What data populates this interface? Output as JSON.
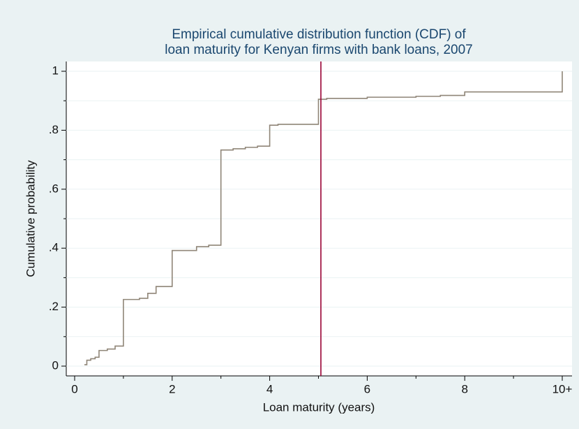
{
  "chart_data": {
    "type": "step",
    "title": [
      "Empirical cumulative distribution function (CDF) of",
      "loan maturity for Kenyan firms with bank loans, 2007"
    ],
    "x_label": "Loan maturity (years)",
    "y_label": "Cumulative probability",
    "x": [
      0.2,
      0.25,
      0.33,
      0.42,
      0.5,
      0.67,
      0.83,
      1,
      1.33,
      1.5,
      1.67,
      2,
      2.5,
      2.75,
      3,
      3.25,
      3.5,
      3.75,
      4,
      4.17,
      5,
      5.17,
      6,
      7,
      7.5,
      8,
      10
    ],
    "values": [
      0.005,
      0.02,
      0.025,
      0.03,
      0.053,
      0.058,
      0.068,
      0.226,
      0.23,
      0.247,
      0.27,
      0.392,
      0.405,
      0.41,
      0.733,
      0.737,
      0.742,
      0.746,
      0.817,
      0.82,
      0.905,
      0.908,
      0.912,
      0.915,
      0.918,
      0.93,
      1.0
    ],
    "color": "#8f8577",
    "reference_line": {
      "x": 5.05,
      "color": "#990033"
    },
    "xlim": [
      0,
      10
    ],
    "ylim": [
      0,
      1
    ],
    "xticks": [
      0,
      2,
      4,
      6,
      8,
      {
        "value": 10,
        "label": "10+"
      }
    ],
    "xminor": [
      1,
      3,
      5,
      7,
      9
    ],
    "yticks": [
      0,
      {
        "value": 0.2,
        "label": ".2"
      },
      {
        "value": 0.4,
        "label": ".4"
      },
      {
        "value": 0.6,
        "label": ".6"
      },
      {
        "value": 0.8,
        "label": ".8"
      },
      1
    ],
    "yminor": [
      0.1,
      0.3,
      0.5,
      0.7,
      0.9
    ],
    "grid": true
  }
}
